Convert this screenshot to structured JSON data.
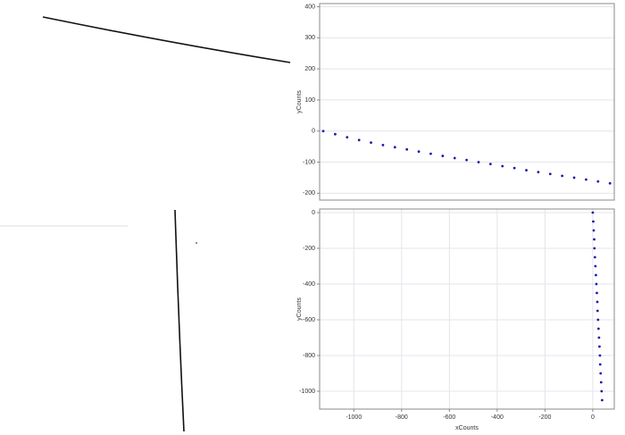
{
  "chart_data": [
    {
      "type": "scatter",
      "y_label": "yCounts",
      "color": "#1c1ca8",
      "x": [
        -1128,
        -1078,
        -1028,
        -978,
        -928,
        -878,
        -828,
        -778,
        -728,
        -678,
        -628,
        -578,
        -528,
        -478,
        -428,
        -378,
        -328,
        -278,
        -228,
        -178,
        -128,
        -78,
        -28,
        22,
        72
      ],
      "values": [
        0,
        -10,
        -20,
        -29,
        -37,
        -45,
        -52,
        -59,
        -66,
        -73,
        -80,
        -87,
        -93,
        -100,
        -106,
        -113,
        -119,
        -126,
        -132,
        -138,
        -144,
        -150,
        -156,
        -162,
        -168
      ],
      "xlim": [
        -1143,
        90
      ],
      "ylim": [
        -222,
        410
      ],
      "yticks": [
        400,
        300,
        200,
        100,
        0,
        -100,
        -200
      ],
      "grid": true
    },
    {
      "type": "scatter",
      "x_label": "xCounts",
      "y_label": "yCounts",
      "color": "#1c1ca8",
      "x": [
        0,
        2,
        4,
        6,
        7,
        9,
        11,
        13,
        15,
        17,
        19,
        20,
        22,
        24,
        26,
        28,
        30,
        31,
        33,
        35,
        37,
        39
      ],
      "values": [
        0,
        -50,
        -100,
        -150,
        -200,
        -250,
        -300,
        -350,
        -400,
        -450,
        -500,
        -550,
        -600,
        -650,
        -700,
        -750,
        -800,
        -850,
        -900,
        -950,
        -1000,
        -1050
      ],
      "xlim": [
        -1143,
        90
      ],
      "ylim": [
        -1100,
        20
      ],
      "xticks": [
        -1000,
        -800,
        -600,
        -400,
        -200,
        0
      ],
      "yticks": [
        0,
        -200,
        -400,
        -600,
        -800,
        -1000
      ],
      "grid": true
    }
  ]
}
